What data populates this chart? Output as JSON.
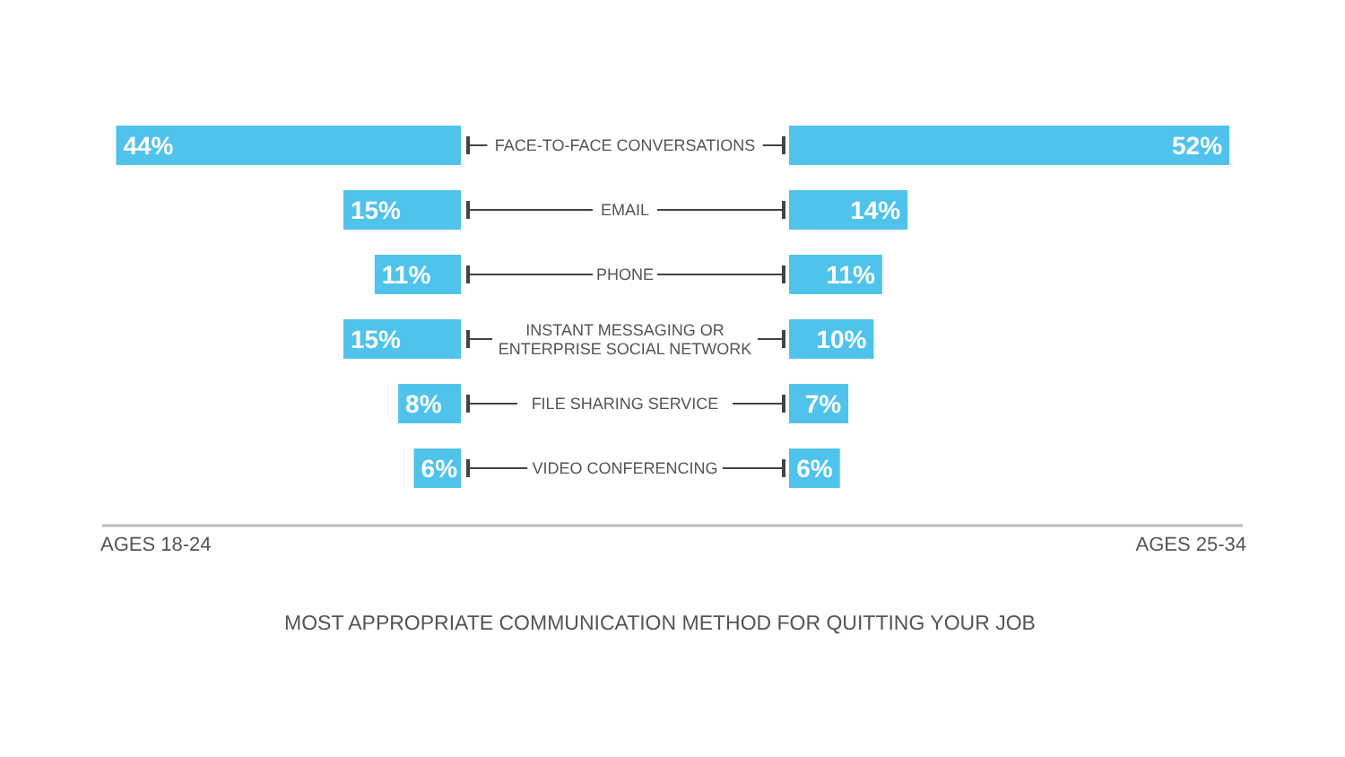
{
  "chart_data": [
    {
      "type": "bar",
      "orientation": "horizontal",
      "title": "MOST APPROPRIATE COMMUNICATION METHOD FOR QUITTING YOUR JOB",
      "xlabel": "AGES 18-24",
      "categories": [
        "FACE-TO-FACE CONVERSATIONS",
        "EMAIL",
        "PHONE",
        "INSTANT MESSAGING OR ENTERPRISE SOCIAL NETWORK",
        "FILE SHARING SERVICE",
        "VIDEO CONFERENCING"
      ],
      "values": [
        44,
        15,
        11,
        15,
        8,
        6
      ],
      "value_labels": [
        "44%",
        "15%",
        "11%",
        "15%",
        "8%",
        "6%"
      ],
      "color": "#4fc3ec",
      "xlim": [
        46,
        0
      ]
    },
    {
      "type": "bar",
      "orientation": "horizontal",
      "xlabel": "AGES 25-34",
      "categories": [
        "FACE-TO-FACE CONVERSATIONS",
        "EMAIL",
        "PHONE",
        "INSTANT MESSAGING OR ENTERPRISE SOCIAL NETWORK",
        "FILE SHARING SERVICE",
        "VIDEO CONFERENCING"
      ],
      "values": [
        52,
        14,
        11,
        10,
        7,
        6
      ],
      "value_labels": [
        "52%",
        "14%",
        "11%",
        "10%",
        "7%",
        "6%"
      ],
      "color": "#4fc3ec",
      "xlim": [
        0,
        54
      ],
      "tick_labels": false
    }
  ]
}
